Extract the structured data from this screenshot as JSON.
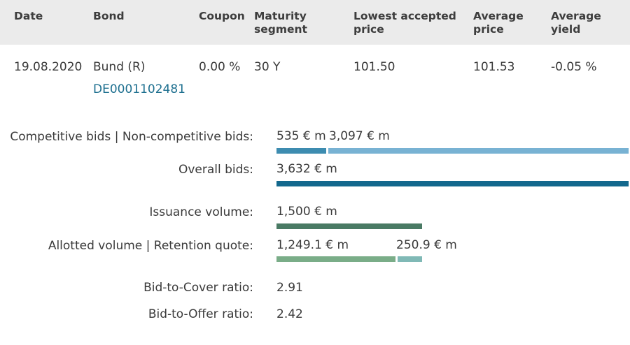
{
  "table": {
    "headers": {
      "date": "Date",
      "bond": "Bond",
      "coupon": "Coupon",
      "maturity_1": "Maturity",
      "maturity_2": "segment",
      "lowest_1": "Lowest accepted",
      "lowest_2": "price",
      "avgprice_1": "Average",
      "avgprice_2": "price",
      "avgyield_1": "Average",
      "avgyield_2": "yield"
    },
    "row": {
      "date": "19.08.2020",
      "bond": "Bund (R)",
      "isin": "DE0001102481",
      "coupon": "0.00 %",
      "maturity": "30 Y",
      "lowest_price": "101.50",
      "average_price": "101.53",
      "average_yield": "-0.05 %"
    }
  },
  "chart_data": {
    "type": "bar",
    "unit": "€ m",
    "scale_max": 3632,
    "rows": [
      {
        "label": "Competitive bids | Non-competitive bids:",
        "segments": [
          {
            "value": 535,
            "text": "535 € m",
            "color": "#3d8cb0"
          },
          {
            "value": 3097,
            "text": "3,097 € m",
            "color": "#78b2d3"
          }
        ]
      },
      {
        "label": "Overall bids:",
        "segments": [
          {
            "value": 3632,
            "text": "3,632 € m",
            "color": "#13688d"
          }
        ]
      },
      {
        "label": "Issuance volume:",
        "segments": [
          {
            "value": 1500,
            "text": "1,500 € m",
            "color": "#4a7a64"
          }
        ]
      },
      {
        "label": "Allotted volume | Retention quote:",
        "segments": [
          {
            "value": 1249.1,
            "text": "1,249.1 € m",
            "color": "#7aad88"
          },
          {
            "value": 250.9,
            "text": "250.9 € m",
            "color": "#80b9b6"
          }
        ]
      }
    ]
  },
  "ratios": {
    "bid_to_cover_label": "Bid-to-Cover ratio:",
    "bid_to_cover_value": "2.91",
    "bid_to_offer_label": "Bid-to-Offer ratio:",
    "bid_to_offer_value": "2.42"
  }
}
